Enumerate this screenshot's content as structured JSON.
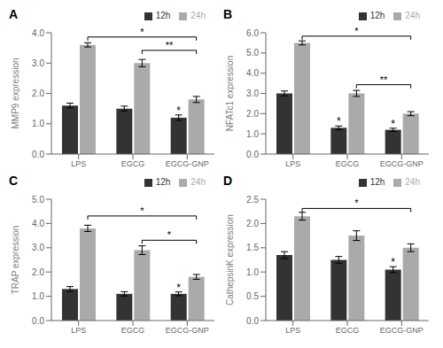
{
  "chart_data": [
    {
      "type": "bar",
      "title": "A",
      "ylabel": "MMP9 expression",
      "categories": [
        "LPS",
        "EGCG",
        "EGCG-GNP"
      ],
      "series": [
        {
          "name": "12h",
          "color": "#333333",
          "values": [
            1.6,
            1.5,
            1.2
          ],
          "errors": [
            0.08,
            0.08,
            0.09
          ]
        },
        {
          "name": "24h",
          "color": "#aaaaaa",
          "values": [
            3.6,
            3.0,
            1.8
          ],
          "errors": [
            0.07,
            0.12,
            0.1
          ]
        }
      ],
      "ylim": [
        0,
        4.0
      ],
      "yticks": [
        {
          "value": 0,
          "label": "0.0"
        },
        {
          "value": 1,
          "label": "1.0"
        },
        {
          "value": 2,
          "label": "2.0"
        },
        {
          "value": 3,
          "label": "3.0"
        },
        {
          "value": 4,
          "label": "4.0"
        }
      ],
      "grid": false,
      "legend": "upper right",
      "annotations": [
        {
          "type": "marker",
          "text": "*",
          "category": "EGCG-GNP",
          "series": "12h"
        },
        {
          "type": "bracket",
          "text": "*",
          "x1": "LPS",
          "series1": "24h",
          "x2": "EGCG-GNP",
          "series2": "24h",
          "y": 3.86
        },
        {
          "type": "bracket",
          "text": "**",
          "x1": "EGCG",
          "series1": "24h",
          "x2": "EGCG-GNP",
          "series2": "24h",
          "y": 3.42
        }
      ]
    },
    {
      "type": "bar",
      "title": "B",
      "ylabel": "NFATc1 expression",
      "categories": [
        "LPS",
        "EGCG",
        "EGCG-GNP"
      ],
      "series": [
        {
          "name": "12h",
          "color": "#333333",
          "values": [
            3.0,
            1.3,
            1.2
          ],
          "errors": [
            0.12,
            0.09,
            0.08
          ]
        },
        {
          "name": "24h",
          "color": "#aaaaaa",
          "values": [
            5.5,
            3.0,
            2.0
          ],
          "errors": [
            0.1,
            0.15,
            0.1
          ]
        }
      ],
      "ylim": [
        0,
        6.0
      ],
      "yticks": [
        {
          "value": 0,
          "label": "0.0"
        },
        {
          "value": 1,
          "label": "1.0"
        },
        {
          "value": 2,
          "label": "2.0"
        },
        {
          "value": 3,
          "label": "3.0"
        },
        {
          "value": 4,
          "label": "4.0"
        },
        {
          "value": 5,
          "label": "5.0"
        },
        {
          "value": 6,
          "label": "6.0"
        }
      ],
      "grid": false,
      "legend": "upper right",
      "annotations": [
        {
          "type": "marker",
          "text": "*",
          "category": "EGCG",
          "series": "12h"
        },
        {
          "type": "marker",
          "text": "*",
          "category": "EGCG-GNP",
          "series": "12h"
        },
        {
          "type": "bracket",
          "text": "*",
          "x1": "LPS",
          "series1": "24h",
          "x2": "EGCG-GNP",
          "series2": "24h",
          "y": 5.832
        },
        {
          "type": "bracket",
          "text": "**",
          "x1": "EGCG",
          "series1": "24h",
          "x2": "EGCG-GNP",
          "series2": "24h",
          "y": 3.432
        }
      ]
    },
    {
      "type": "bar",
      "title": "C",
      "ylabel": "TRAP expression",
      "categories": [
        "LPS",
        "EGCG",
        "EGCG-GNP"
      ],
      "series": [
        {
          "name": "12h",
          "color": "#333333",
          "values": [
            1.3,
            1.1,
            1.1
          ],
          "errors": [
            0.1,
            0.09,
            0.08
          ]
        },
        {
          "name": "24h",
          "color": "#aaaaaa",
          "values": [
            3.8,
            2.9,
            1.8
          ],
          "errors": [
            0.13,
            0.18,
            0.1
          ]
        }
      ],
      "ylim": [
        0,
        5.0
      ],
      "yticks": [
        {
          "value": 0,
          "label": "0.0"
        },
        {
          "value": 1,
          "label": "1.0"
        },
        {
          "value": 2,
          "label": "2.0"
        },
        {
          "value": 3,
          "label": "3.0"
        },
        {
          "value": 4,
          "label": "4.0"
        },
        {
          "value": 5,
          "label": "5.0"
        }
      ],
      "grid": false,
      "legend": "upper right",
      "annotations": [
        {
          "type": "marker",
          "text": "*",
          "category": "EGCG-GNP",
          "series": "12h"
        },
        {
          "type": "bracket",
          "text": "*",
          "x1": "LPS",
          "series1": "24h",
          "x2": "EGCG-GNP",
          "series2": "24h",
          "y": 4.31
        },
        {
          "type": "bracket",
          "text": "*",
          "x1": "EGCG",
          "series1": "24h",
          "x2": "EGCG-GNP",
          "series2": "24h",
          "y": 3.31
        }
      ]
    },
    {
      "type": "bar",
      "title": "D",
      "ylabel": "CathepsinK expression",
      "categories": [
        "LPS",
        "EGCG",
        "EGCG-GNP"
      ],
      "series": [
        {
          "name": "12h",
          "color": "#333333",
          "values": [
            1.35,
            1.25,
            1.05
          ],
          "errors": [
            0.07,
            0.07,
            0.06
          ]
        },
        {
          "name": "24h",
          "color": "#aaaaaa",
          "values": [
            2.15,
            1.75,
            1.5
          ],
          "errors": [
            0.08,
            0.1,
            0.08
          ]
        }
      ],
      "ylim": [
        0,
        2.5
      ],
      "yticks": [
        {
          "value": 0,
          "label": "0.0"
        },
        0.5,
        {
          "value": 1,
          "label": "1.0"
        },
        1.5,
        {
          "value": 2,
          "label": "2.0"
        },
        2.5
      ],
      "grid": false,
      "legend": "upper right",
      "annotations": [
        {
          "type": "marker",
          "text": "*",
          "category": "EGCG-GNP",
          "series": "12h"
        },
        {
          "type": "bracket",
          "text": "*",
          "x1": "LPS",
          "series1": "24h",
          "x2": "EGCG-GNP",
          "series2": "24h",
          "y": 2.31
        }
      ]
    }
  ]
}
